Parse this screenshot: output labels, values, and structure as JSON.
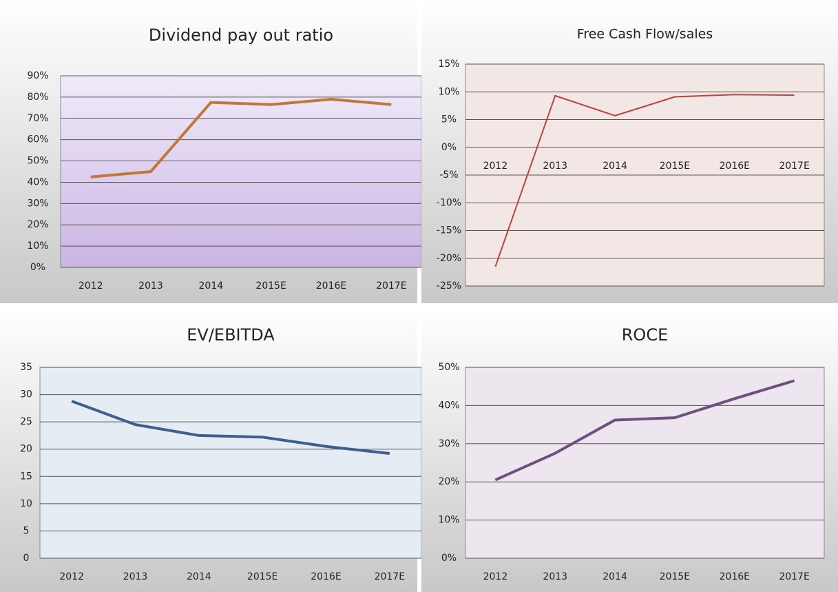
{
  "chart_data": [
    {
      "type": "line",
      "title": "Dividend pay out ratio",
      "categories": [
        "2012",
        "2013",
        "2014",
        "2015E",
        "2016E",
        "2017E"
      ],
      "values": [
        42.5,
        45,
        77.5,
        76.5,
        79,
        76.5
      ],
      "color": "#c0773a",
      "ylim": [
        0,
        90
      ],
      "yticks": [
        {
          "value": 0,
          "label": "0%"
        },
        {
          "value": 10,
          "label": "10%"
        },
        {
          "value": 20,
          "label": "20%"
        },
        {
          "value": 30,
          "label": "30%"
        },
        {
          "value": 40,
          "label": "40%"
        },
        {
          "value": 50,
          "label": "50%"
        },
        {
          "value": 60,
          "label": "60%"
        },
        {
          "value": 70,
          "label": "70%"
        },
        {
          "value": 80,
          "label": "80%"
        },
        {
          "value": 90,
          "label": "90%"
        }
      ],
      "grid": true
    },
    {
      "type": "line",
      "title": "Free Cash Flow/sales",
      "categories": [
        "2012",
        "2013",
        "2014",
        "2015E",
        "2016E",
        "2017E"
      ],
      "values": [
        -21.5,
        9.3,
        5.7,
        9.1,
        9.5,
        9.4
      ],
      "color": "#b8433f",
      "ylim": [
        -25,
        15
      ],
      "yticks": [
        {
          "value": -25,
          "label": "-25%"
        },
        {
          "value": -20,
          "label": "-20%"
        },
        {
          "value": -15,
          "label": "-15%"
        },
        {
          "value": -10,
          "label": "-10%"
        },
        {
          "value": -5,
          "label": "-5%"
        },
        {
          "value": 0,
          "label": "0%"
        },
        {
          "value": 5,
          "label": "5%"
        },
        {
          "value": 10,
          "label": "10%"
        },
        {
          "value": 15,
          "label": "15%"
        }
      ],
      "grid": true
    },
    {
      "type": "line",
      "title": "EV/EBITDA",
      "categories": [
        "2012",
        "2013",
        "2014",
        "2015E",
        "2016E",
        "2017E"
      ],
      "values": [
        28.8,
        24.5,
        22.5,
        22.2,
        20.5,
        19.2
      ],
      "color": "#3d5f8f",
      "ylim": [
        0,
        35
      ],
      "yticks": [
        0,
        5,
        10,
        15,
        20,
        25,
        30,
        35
      ],
      "grid": true
    },
    {
      "type": "line",
      "title": "ROCE",
      "categories": [
        "2012",
        "2013",
        "2014",
        "2015E",
        "2016E",
        "2017E"
      ],
      "values": [
        20.5,
        27.5,
        36.2,
        36.8,
        41.8,
        46.5
      ],
      "color": "#6e4f80",
      "ylim": [
        0,
        50
      ],
      "yticks": [
        {
          "value": 0,
          "label": "0%"
        },
        {
          "value": 10,
          "label": "10%"
        },
        {
          "value": 20,
          "label": "20%"
        },
        {
          "value": 30,
          "label": "30%"
        },
        {
          "value": 40,
          "label": "40%"
        },
        {
          "value": 50,
          "label": "50%"
        }
      ],
      "grid": true
    }
  ]
}
